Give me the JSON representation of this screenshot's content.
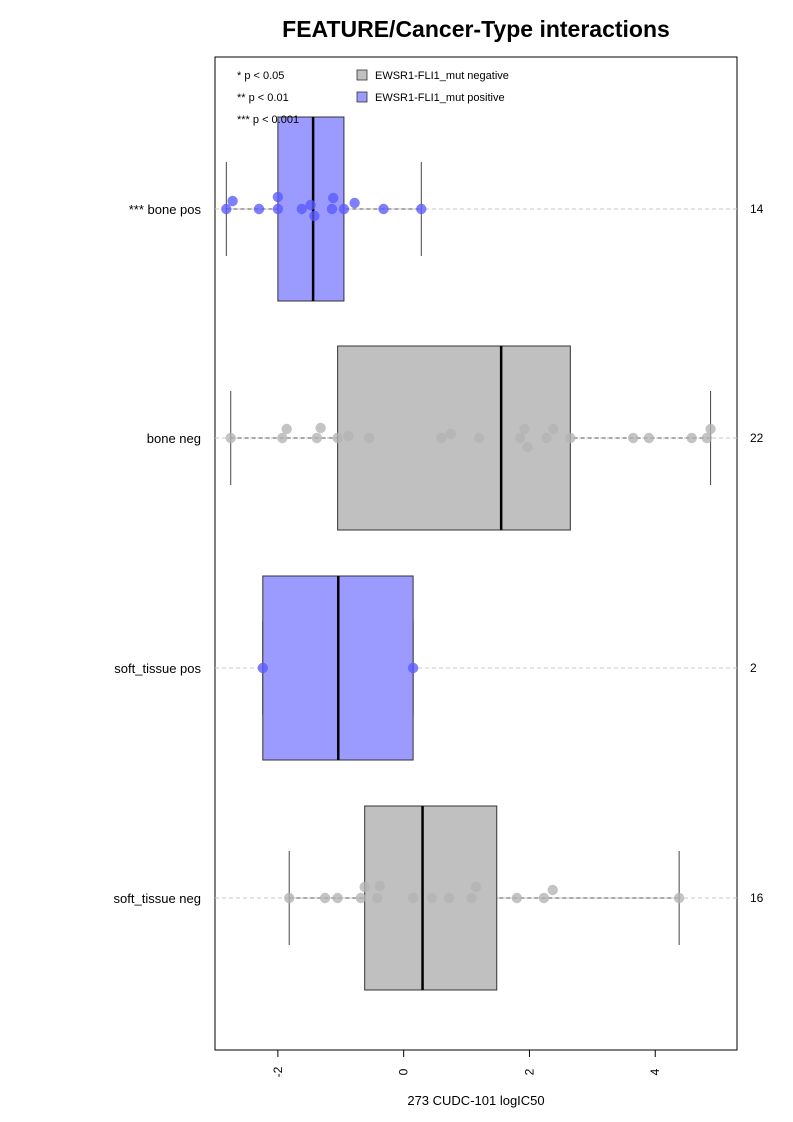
{
  "chart_data": {
    "type": "boxplot",
    "title": "FEATURE/Cancer-Type interactions",
    "xlabel": "273 CUDC-101 logIC50",
    "xlim": [
      -3.0,
      5.3
    ],
    "xticks": [
      -2,
      0,
      2,
      4
    ],
    "xtick_labels": [
      "-2",
      "0",
      "2",
      "4"
    ],
    "grid": false,
    "significance_legend": [
      "* p < 0.05",
      "** p < 0.01",
      "*** p < 0.001"
    ],
    "legend": [
      {
        "label": "EWSR1-FLI1_mut negative",
        "color": "#c0c0c0"
      },
      {
        "label": "EWSR1-FLI1_mut positive",
        "color": "#9a9aff"
      }
    ],
    "groups": [
      {
        "label": "*** bone pos",
        "n_label": "14",
        "status": "positive",
        "box_color": "#9a9aff",
        "point_color": "#5a5aff",
        "whisker_low": -2.82,
        "q1": -2.0,
        "median": -1.44,
        "q3": -0.95,
        "whisker_high": 0.28,
        "points": [
          {
            "x": -2.82,
            "j": 0
          },
          {
            "x": -2.72,
            "j": 8
          },
          {
            "x": -2.3,
            "j": 0
          },
          {
            "x": -2.0,
            "j": 12
          },
          {
            "x": -2.0,
            "j": 0
          },
          {
            "x": -1.62,
            "j": 0
          },
          {
            "x": -1.48,
            "j": 4
          },
          {
            "x": -1.42,
            "j": -7
          },
          {
            "x": -1.14,
            "j": 0
          },
          {
            "x": -1.12,
            "j": 11
          },
          {
            "x": -0.95,
            "j": 0
          },
          {
            "x": -0.78,
            "j": 6
          },
          {
            "x": -0.32,
            "j": 0
          },
          {
            "x": 0.28,
            "j": 0
          }
        ]
      },
      {
        "label": "bone neg",
        "n_label": "22",
        "status": "negative",
        "box_color": "#c0c0c0",
        "point_color": "#b4b4b4",
        "whisker_low": -2.75,
        "q1": -1.05,
        "median": 1.55,
        "q3": 2.65,
        "whisker_high": 4.88,
        "points": [
          {
            "x": -2.75,
            "j": 0
          },
          {
            "x": -1.93,
            "j": 0
          },
          {
            "x": -1.86,
            "j": 9
          },
          {
            "x": -1.38,
            "j": 0
          },
          {
            "x": -1.32,
            "j": 10
          },
          {
            "x": -1.05,
            "j": 0
          },
          {
            "x": -0.88,
            "j": 2
          },
          {
            "x": -0.55,
            "j": 0
          },
          {
            "x": 0.6,
            "j": 0
          },
          {
            "x": 0.75,
            "j": 4
          },
          {
            "x": 1.2,
            "j": 0
          },
          {
            "x": 1.85,
            "j": 0
          },
          {
            "x": 1.92,
            "j": 9
          },
          {
            "x": 1.97,
            "j": -9
          },
          {
            "x": 2.27,
            "j": 0
          },
          {
            "x": 2.38,
            "j": 9
          },
          {
            "x": 2.65,
            "j": 0
          },
          {
            "x": 3.65,
            "j": 0
          },
          {
            "x": 3.9,
            "j": 0
          },
          {
            "x": 4.58,
            "j": 0
          },
          {
            "x": 4.82,
            "j": 0
          },
          {
            "x": 4.88,
            "j": 9
          }
        ]
      },
      {
        "label": "soft_tissue pos",
        "n_label": "2",
        "status": "positive",
        "box_color": "#9a9aff",
        "point_color": "#5a5aff",
        "whisker_low": -2.24,
        "q1": -2.24,
        "median": -1.04,
        "q3": 0.15,
        "whisker_high": 0.15,
        "points": [
          {
            "x": -2.24,
            "j": 0
          },
          {
            "x": 0.15,
            "j": 0
          }
        ]
      },
      {
        "label": "soft_tissue neg",
        "n_label": "16",
        "status": "negative",
        "box_color": "#c0c0c0",
        "point_color": "#b4b4b4",
        "whisker_low": -1.82,
        "q1": -0.62,
        "median": 0.3,
        "q3": 1.48,
        "whisker_high": 4.38,
        "points": [
          {
            "x": -1.82,
            "j": 0
          },
          {
            "x": -1.25,
            "j": 0
          },
          {
            "x": -1.05,
            "j": 0
          },
          {
            "x": -0.68,
            "j": 0
          },
          {
            "x": -0.62,
            "j": 11
          },
          {
            "x": -0.42,
            "j": 0
          },
          {
            "x": -0.38,
            "j": 12
          },
          {
            "x": 0.15,
            "j": 0
          },
          {
            "x": 0.45,
            "j": 0
          },
          {
            "x": 0.72,
            "j": 0
          },
          {
            "x": 1.08,
            "j": 0
          },
          {
            "x": 1.15,
            "j": 11
          },
          {
            "x": 1.8,
            "j": 0
          },
          {
            "x": 2.23,
            "j": 0
          },
          {
            "x": 2.37,
            "j": 8
          },
          {
            "x": 4.38,
            "j": 0
          }
        ]
      }
    ]
  }
}
